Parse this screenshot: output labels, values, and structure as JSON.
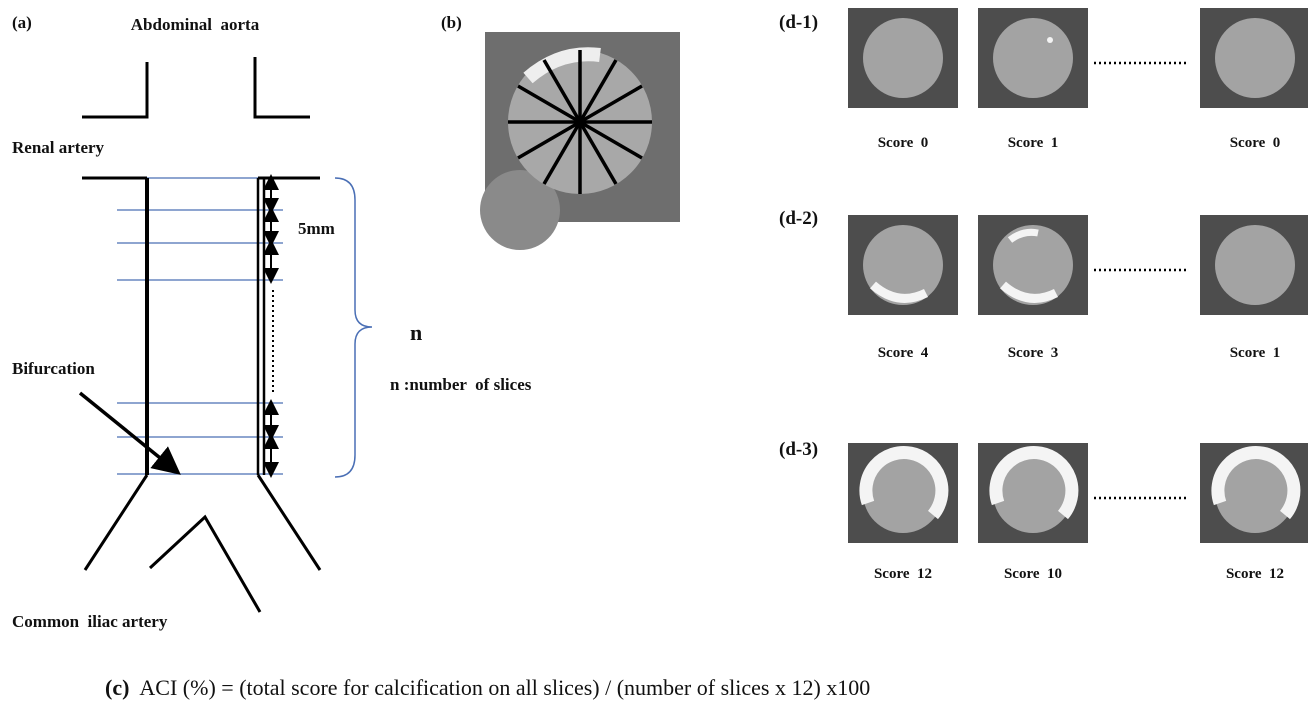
{
  "panel_a": {
    "label": "(a)",
    "top_label": "Abdominal  aorta",
    "renal_label": "Renal artery",
    "spacing_label": "5mm",
    "bracket_label": "n",
    "bracket_note": "n :number  of slices",
    "bifurcation_label": "Bifurcation",
    "bottom_label": "Common  iliac artery"
  },
  "panel_b": {
    "label": "(b)"
  },
  "panel_d": {
    "rows": [
      {
        "label": "(d-1)",
        "scores": [
          "Score  0",
          "Score  1",
          "Score  0"
        ]
      },
      {
        "label": "(d-2)",
        "scores": [
          "Score  4",
          "Score  3",
          "Score  1"
        ]
      },
      {
        "label": "(d-3)",
        "scores": [
          "Score  12",
          "Score  10",
          "Score  12"
        ]
      }
    ]
  },
  "panel_c": {
    "label": "(c)",
    "formula": "ACI (%) = (total score for calcification on all slices) / (number of slices x 12) x100"
  }
}
